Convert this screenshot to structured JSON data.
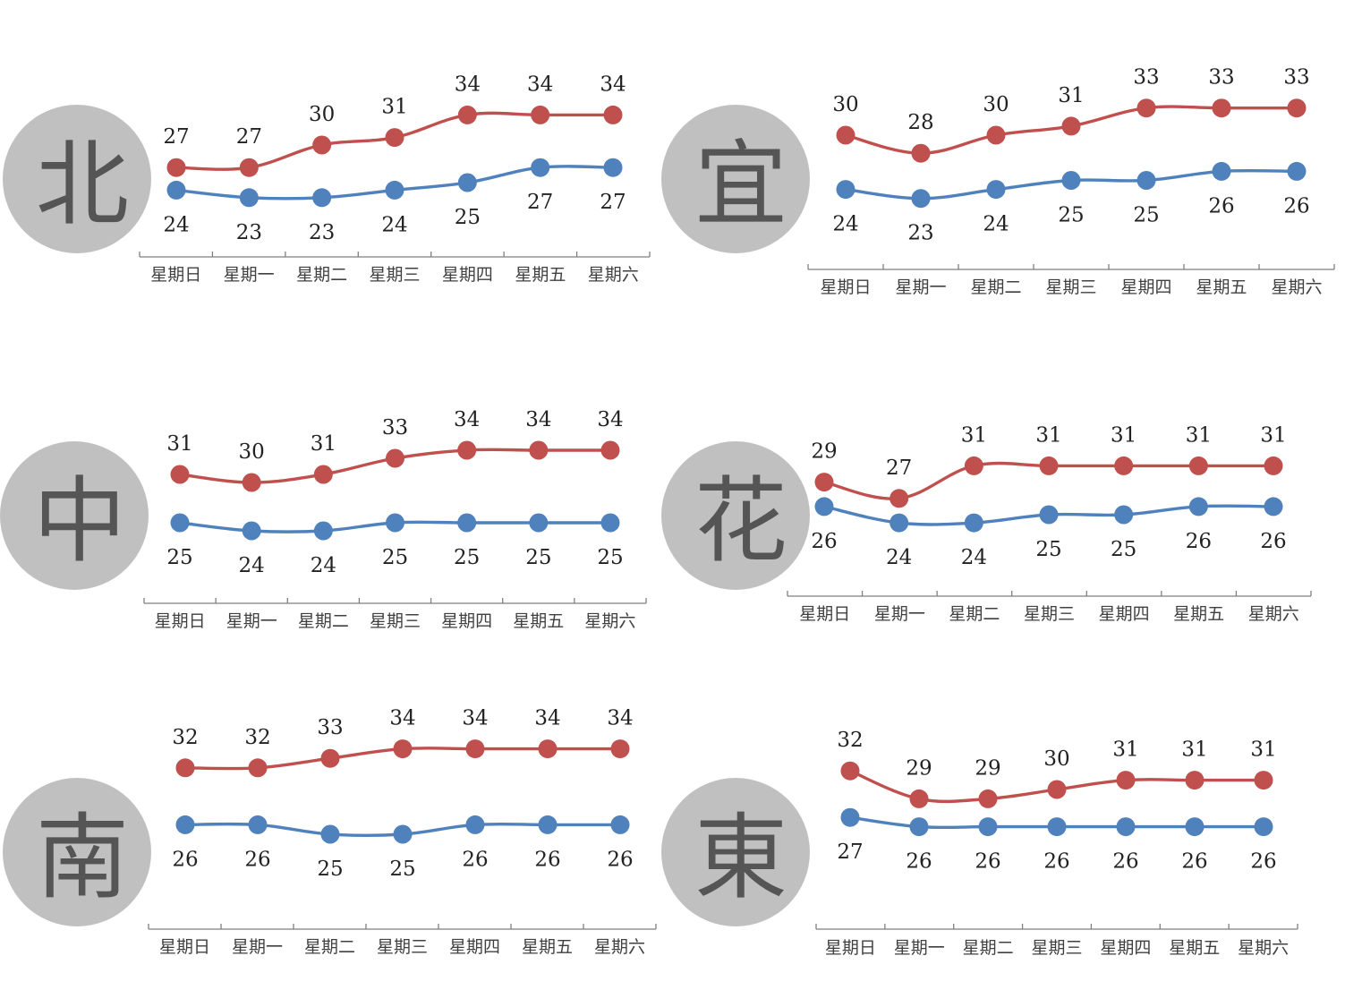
{
  "colors": {
    "high": "#c0504d",
    "low": "#4f81bd",
    "circle": "#c0c0c0",
    "city_text": "#555555"
  },
  "chart_data": [
    {
      "type": "line",
      "city": "北",
      "categories": [
        "星期日",
        "星期一",
        "星期二",
        "星期三",
        "星期四",
        "星期五",
        "星期六"
      ],
      "series": [
        {
          "key": "high",
          "values": [
            27,
            27,
            30,
            31,
            34,
            34,
            34
          ]
        },
        {
          "key": "low",
          "values": [
            24,
            23,
            23,
            24,
            25,
            27,
            27
          ]
        }
      ]
    },
    {
      "type": "line",
      "city": "宜",
      "categories": [
        "星期日",
        "星期一",
        "星期二",
        "星期三",
        "星期四",
        "星期五",
        "星期六"
      ],
      "series": [
        {
          "key": "high",
          "values": [
            30,
            28,
            30,
            31,
            33,
            33,
            33
          ]
        },
        {
          "key": "low",
          "values": [
            24,
            23,
            24,
            25,
            25,
            26,
            26
          ]
        }
      ]
    },
    {
      "type": "line",
      "city": "中",
      "categories": [
        "星期日",
        "星期一",
        "星期二",
        "星期三",
        "星期四",
        "星期五",
        "星期六"
      ],
      "series": [
        {
          "key": "high",
          "values": [
            31,
            30,
            31,
            33,
            34,
            34,
            34
          ]
        },
        {
          "key": "low",
          "values": [
            25,
            24,
            24,
            25,
            25,
            25,
            25
          ]
        }
      ]
    },
    {
      "type": "line",
      "city": "花",
      "categories": [
        "星期日",
        "星期一",
        "星期二",
        "星期三",
        "星期四",
        "星期五",
        "星期六"
      ],
      "series": [
        {
          "key": "high",
          "values": [
            29,
            27,
            31,
            31,
            31,
            31,
            31
          ]
        },
        {
          "key": "low",
          "values": [
            26,
            24,
            24,
            25,
            25,
            26,
            26
          ]
        }
      ]
    },
    {
      "type": "line",
      "city": "南",
      "categories": [
        "星期日",
        "星期一",
        "星期二",
        "星期三",
        "星期四",
        "星期五",
        "星期六"
      ],
      "series": [
        {
          "key": "high",
          "values": [
            32,
            32,
            33,
            34,
            34,
            34,
            34
          ]
        },
        {
          "key": "low",
          "values": [
            26,
            26,
            25,
            25,
            26,
            26,
            26
          ]
        }
      ]
    },
    {
      "type": "line",
      "city": "東",
      "categories": [
        "星期日",
        "星期一",
        "星期二",
        "星期三",
        "星期四",
        "星期五",
        "星期六"
      ],
      "series": [
        {
          "key": "high",
          "values": [
            32,
            29,
            29,
            30,
            31,
            31,
            31
          ]
        },
        {
          "key": "low",
          "values": [
            27,
            26,
            26,
            26,
            26,
            26,
            26
          ]
        }
      ]
    }
  ]
}
